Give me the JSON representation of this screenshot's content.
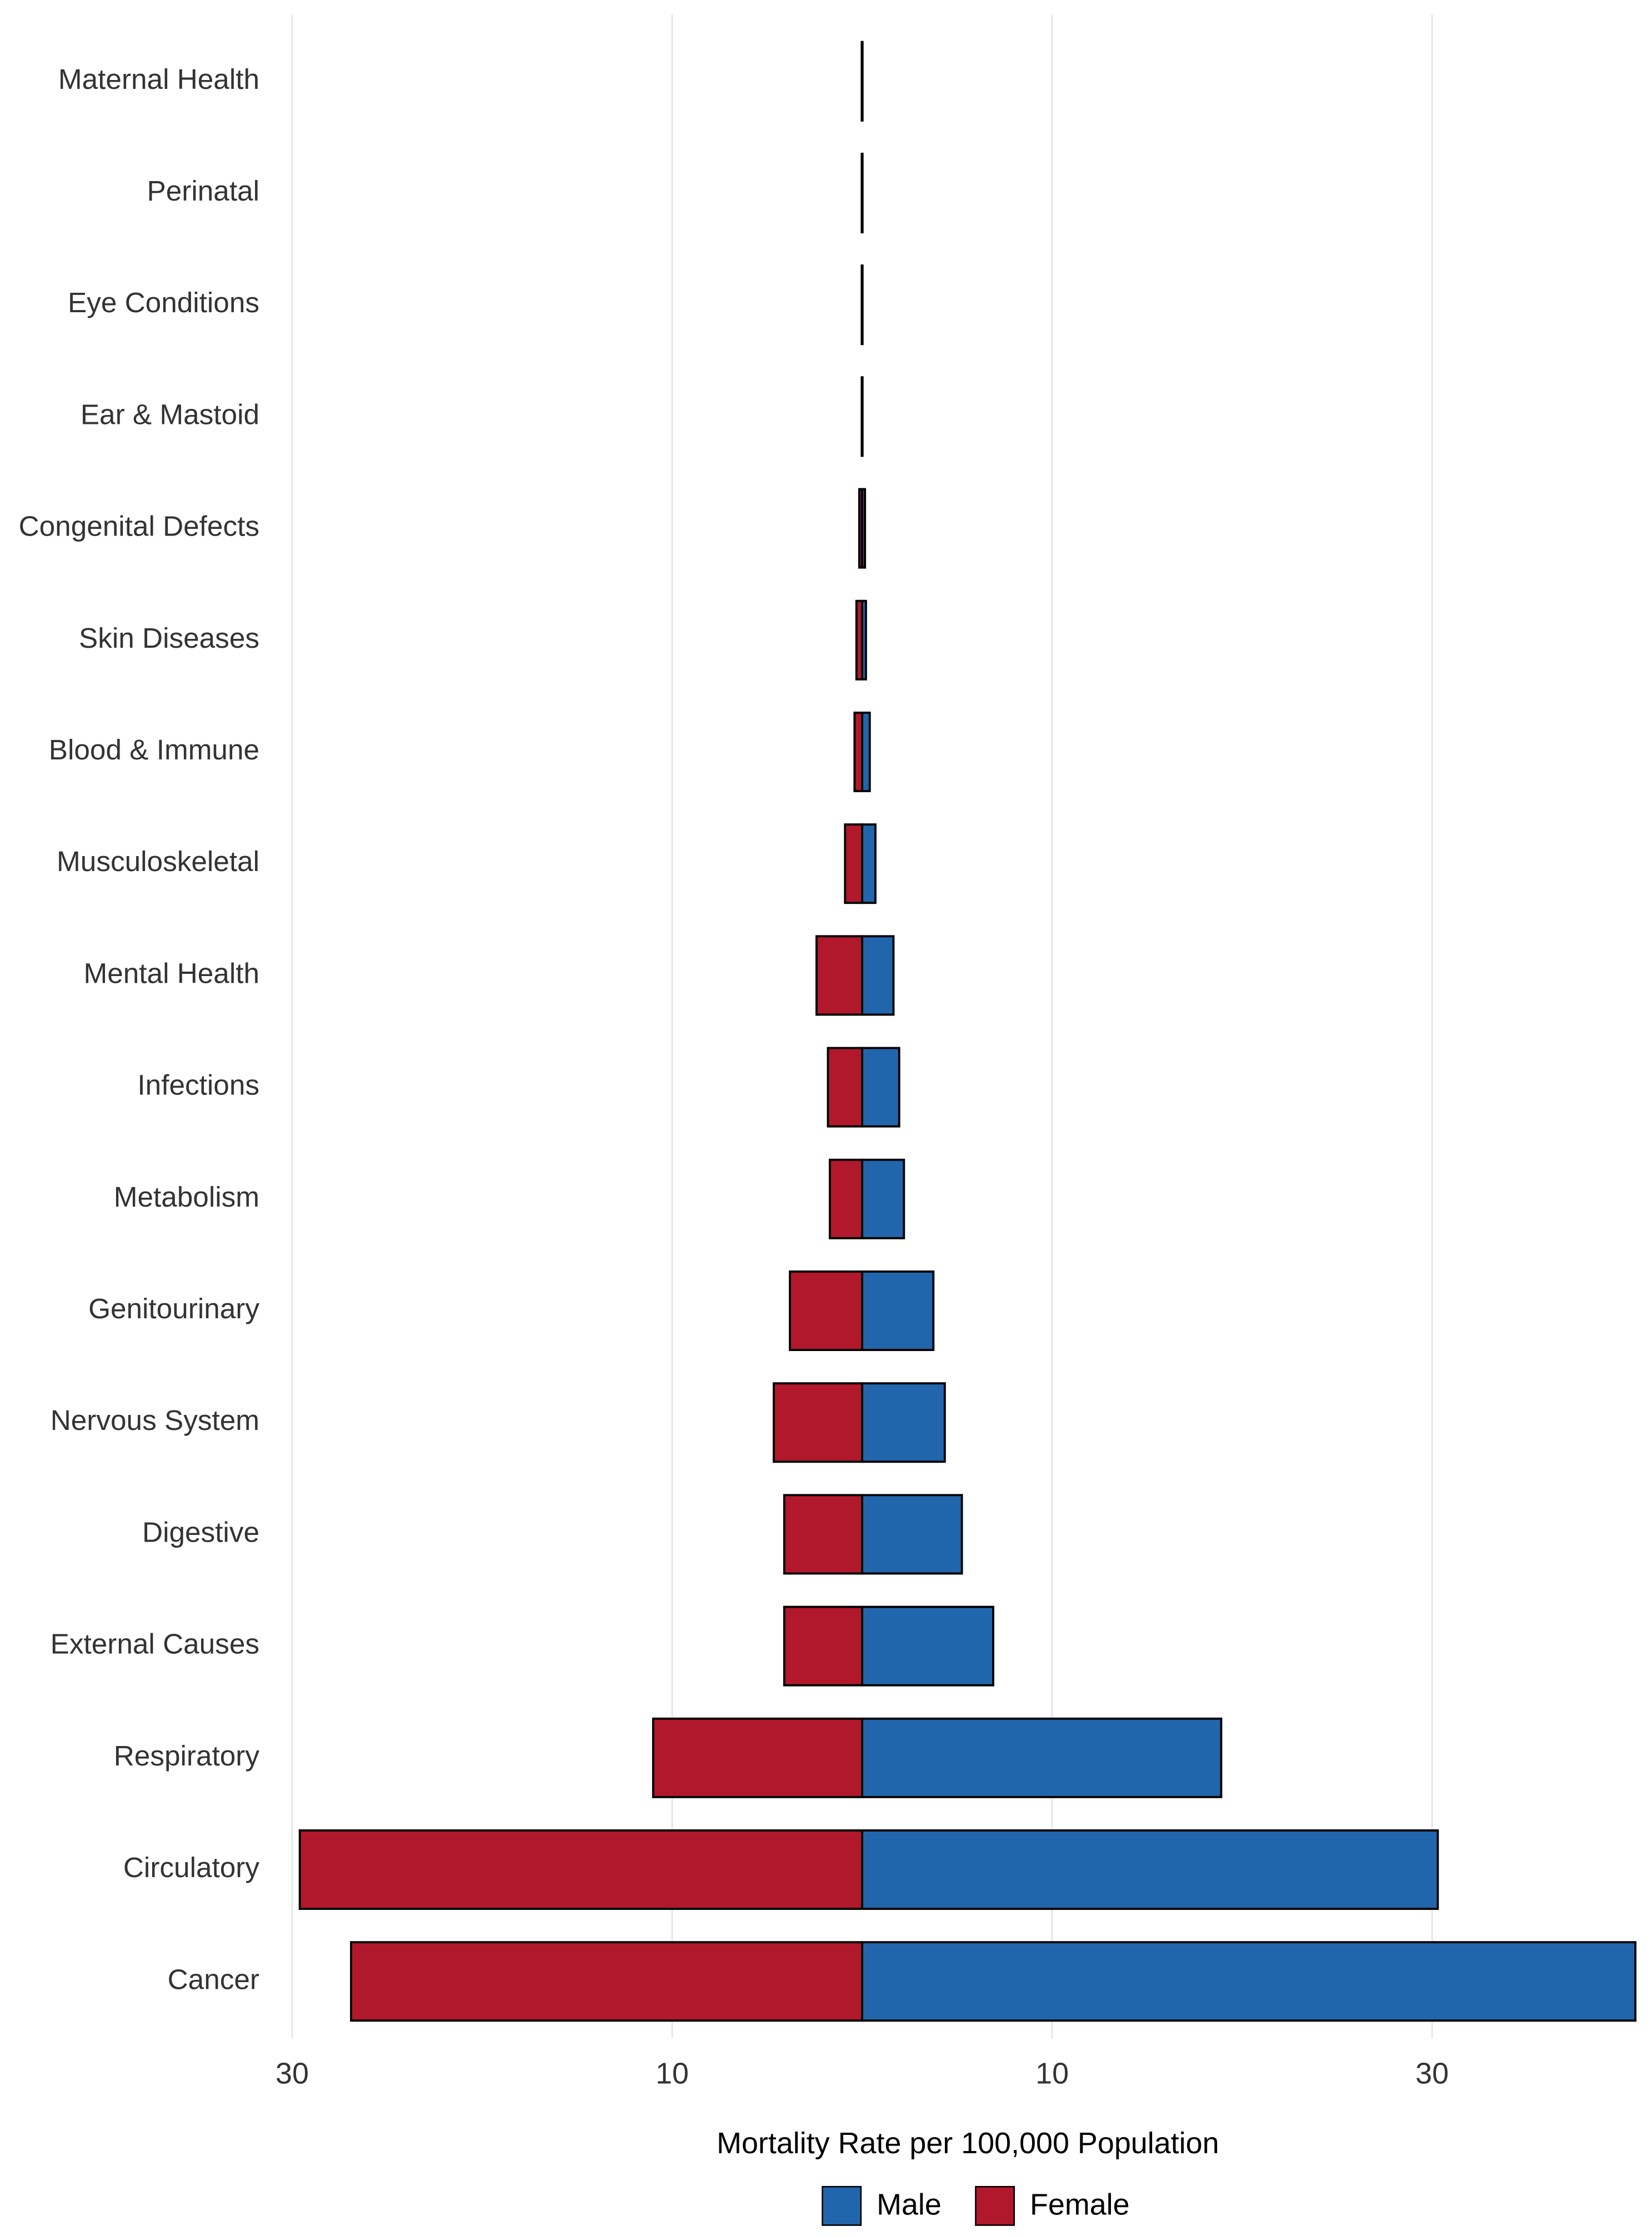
{
  "chart_data": {
    "type": "diverging_bar",
    "x_label": "Mortality Rate per 100,000 Population",
    "categories": [
      "Maternal Health",
      "Perinatal",
      "Eye Conditions",
      "Ear & Mastoid",
      "Congenital Defects",
      "Skin Diseases",
      "Blood & Immune",
      "Musculoskeletal",
      "Mental Health",
      "Infections",
      "Metabolism",
      "Genitourinary",
      "Nervous System",
      "Digestive",
      "External Causes",
      "Respiratory",
      "Circulatory",
      "Cancer"
    ],
    "series": [
      {
        "name": "Male",
        "color": "#2166ac",
        "values": [
          0.02,
          0.02,
          0.02,
          0.02,
          0.15,
          0.2,
          0.4,
          0.7,
          1.65,
          1.95,
          2.2,
          3.75,
          4.35,
          5.25,
          6.9,
          18.9,
          30.3,
          40.7
        ]
      },
      {
        "name": "Female",
        "color": "#b2182b",
        "values": [
          -0.02,
          -0.02,
          -0.02,
          -0.02,
          -0.15,
          -0.3,
          -0.4,
          -0.9,
          -2.4,
          -1.8,
          -1.7,
          -3.8,
          -4.65,
          -4.1,
          -4.1,
          -11.0,
          -29.6,
          -26.9
        ]
      }
    ],
    "xlim": [
      -31.5,
      41.5
    ],
    "xticks": [
      {
        "value": -30,
        "label": "30"
      },
      {
        "value": -10,
        "label": "10"
      },
      10,
      30
    ],
    "grid": true,
    "legend": "bottom"
  }
}
